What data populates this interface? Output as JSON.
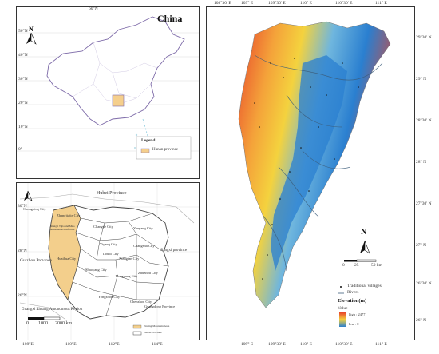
{
  "panel_china": {
    "title": "China",
    "top_lon": "60°N",
    "lat_labels": [
      "50°N",
      "40°N",
      "30°N",
      "20°N",
      "10°N",
      "0°"
    ],
    "legend_title": "Legend",
    "legend_item": "Hunan province",
    "colors": {
      "hunan": "#f5cf8c",
      "outline": "#7d6aa8"
    }
  },
  "panel_hunan": {
    "lat_labels": [
      "30°N",
      "28°N",
      "26°N"
    ],
    "lon_labels": [
      "108°E",
      "110°E",
      "112°E",
      "114°E"
    ],
    "neighbors": {
      "north": "Hubei Province",
      "west_top": "Chongqing City",
      "west": "Guizhou Province",
      "east": "Jiangxi province",
      "south_west": "Guangxi Zhuang Autonomous Region",
      "south_east": "Guangdong Province"
    },
    "cities": [
      "Zhangjiajie City",
      "Xiangxi Tujia and Miao Autonomous Prefecture",
      "Huaihua City",
      "Changde City",
      "Yiyang City",
      "Yueyang City",
      "Loudi City",
      "Xiangtan City",
      "Changsha City",
      "Shaoyang City",
      "Hengyang City",
      "Yongzhou City",
      "Chenzhou City",
      "Zhuzhou City"
    ],
    "scale": [
      "0",
      "1000",
      "2000 km"
    ],
    "legend_items": [
      "Wuling Mountain Area",
      "Hunan Province"
    ],
    "colors": {
      "study_area": "#f3cf8c",
      "county": "#444444"
    }
  },
  "panel_dem": {
    "top_labels": [
      "108°30' E",
      "109° E",
      "109°30' E",
      "110° E",
      "110°30' E",
      "111° E"
    ],
    "bottom_labels": [
      "109° E",
      "109°30' E",
      "110° E",
      "110°30' E",
      "111° E"
    ],
    "right_labels": [
      "29°30' N",
      "29° N",
      "28°30' N",
      "28° N",
      "27°30' N",
      "27° N",
      "26°30' N",
      "26° N"
    ],
    "north_label": "N",
    "scale": [
      "0",
      "25",
      "50 km"
    ],
    "legend": {
      "villages": "Traditional villages",
      "rivers": "Rivers",
      "title": "Elevation(m)",
      "value_label": "Value",
      "high": "high : 2477",
      "low": "low : 0"
    },
    "colors": {
      "high": "#e8432a",
      "mid": "#f4d23e",
      "low": "#2a7fd0"
    }
  }
}
